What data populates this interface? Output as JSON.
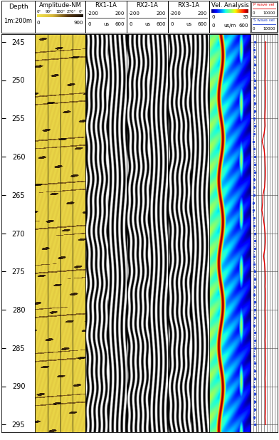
{
  "chart_data": {
    "type": "well_log",
    "ylim": [
      296,
      244
    ],
    "yticks": [
      245,
      250,
      255,
      260,
      265,
      270,
      275,
      280,
      285,
      290,
      295
    ],
    "depths": [
      245,
      246,
      247,
      248,
      249,
      250,
      251,
      252,
      253,
      254,
      255,
      256,
      257,
      258,
      259,
      260,
      261,
      262,
      263,
      264,
      265,
      266,
      267,
      268,
      269,
      270,
      271,
      272,
      273,
      274,
      275,
      276,
      277,
      278,
      279,
      280,
      281,
      282,
      283,
      284,
      285,
      286,
      287,
      288,
      289,
      290,
      291,
      292,
      293,
      294,
      295
    ],
    "tracks": [
      {
        "type": "depth",
        "title": "Depth",
        "rows": [
          [
            "1m:200m"
          ]
        ]
      },
      {
        "type": "image",
        "title": "Amplitude-NM",
        "rows": [
          [
            "0°",
            "90°",
            "180°",
            "270°",
            "0°"
          ],
          [
            "0",
            "900"
          ]
        ],
        "colorbar_range": [
          0,
          900
        ]
      },
      {
        "type": "wiggle",
        "title": "RX1-1A",
        "rows": [
          [
            "-200",
            "200"
          ],
          [
            "0",
            "us",
            "600"
          ]
        ]
      },
      {
        "type": "wiggle",
        "title": "RX2-1A",
        "rows": [
          [
            "-200",
            "200"
          ],
          [
            "0",
            "us",
            "600"
          ]
        ]
      },
      {
        "type": "wiggle",
        "title": "RX3-1A",
        "rows": [
          [
            "-200",
            "200"
          ],
          [
            "0",
            "us",
            "600"
          ]
        ]
      },
      {
        "type": "heatmap",
        "title": "Vel. Analysis",
        "rows": [
          [
            "0",
            "35"
          ],
          [
            "0",
            "us/m",
            "600"
          ]
        ],
        "colorbar_range": [
          0,
          35
        ]
      },
      {
        "type": "line",
        "xlim": [
          0,
          10000
        ],
        "xticks": [
          0,
          1000,
          2000,
          3000,
          4000,
          5000,
          6000,
          7000,
          8000,
          9000,
          10000
        ],
        "grid": true,
        "tick_labels": false,
        "series": [
          {
            "name": "P wave vel",
            "color": "#e00000",
            "line_style": "solid",
            "marker": "none",
            "scale": [
              "0",
              "10000"
            ],
            "values": [
              5600,
              5600,
              5500,
              5600,
              5500,
              5400,
              5500,
              5600,
              5500,
              5400,
              5300,
              5400,
              5000,
              4300,
              5000,
              5300,
              5400,
              5500,
              5400,
              5200,
              4600,
              4500,
              4200,
              4700,
              5100,
              5400,
              5500,
              5300,
              4800,
              5200,
              5400,
              5500,
              5400,
              5600,
              5500,
              5400,
              5500,
              5600,
              5500,
              5400,
              5500,
              5500,
              5600,
              5500,
              5400,
              5500,
              5500,
              5600,
              5500,
              5400,
              5500
            ]
          },
          {
            "name": "S wave vel",
            "color": "#2040d0",
            "line_style": "dotted",
            "marker": "o",
            "scale": [
              "0",
              "10000"
            ],
            "values": [
              1500,
              1400,
              1600,
              1500,
              1300,
              1500,
              1600,
              1400,
              1500,
              1500,
              1400,
              1600,
              1300,
              1100,
              1400,
              1500,
              1600,
              1500,
              1400,
              1300,
              1200,
              1100,
              1000,
              1200,
              1400,
              1500,
              1600,
              1500,
              1300,
              1400,
              1500,
              1600,
              1500,
              1400,
              1500,
              1600,
              1500,
              1400,
              1500,
              1600,
              1500,
              1400,
              1600,
              1500,
              1500,
              1400,
              1600,
              1500,
              1500,
              1400,
              1500
            ]
          }
        ]
      }
    ]
  }
}
